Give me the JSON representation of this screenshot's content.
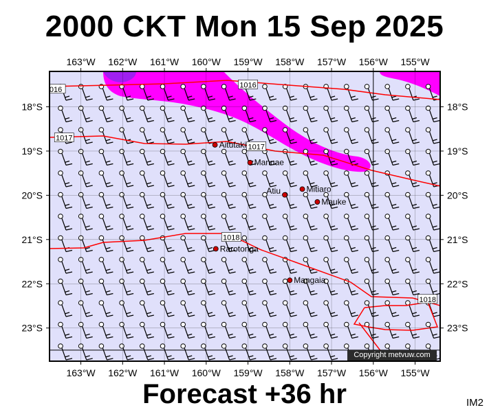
{
  "title": "2000 CKT Mon 15 Sep 2025",
  "subtitle": "Forecast +36 hr",
  "code": "IM2",
  "copyright": "Copyright metvuw.com",
  "map": {
    "lon_min": -163.75,
    "lon_max": -154.4,
    "lat_min": -23.75,
    "lat_max": -17.2,
    "lon_ticks": [
      {
        "value": -163,
        "label": "163°W"
      },
      {
        "value": -162,
        "label": "162°W"
      },
      {
        "value": -161,
        "label": "161°W"
      },
      {
        "value": -160,
        "label": "160°W"
      },
      {
        "value": -159,
        "label": "159°W"
      },
      {
        "value": -158,
        "label": "158°W"
      },
      {
        "value": -157,
        "label": "157°W"
      },
      {
        "value": -156,
        "label": "156°W"
      },
      {
        "value": -155,
        "label": "155°W"
      }
    ],
    "lat_ticks": [
      {
        "value": -18,
        "label": "18°S"
      },
      {
        "value": -19,
        "label": "19°S"
      },
      {
        "value": -20,
        "label": "20°S"
      },
      {
        "value": -21,
        "label": "21°S"
      },
      {
        "value": -22,
        "label": "22°S"
      },
      {
        "value": -23,
        "label": "23°S"
      }
    ],
    "colors": {
      "sea": "#e0e0fb",
      "grid": "#000000",
      "isobar": "#ff0000",
      "rain_light": "#ff00ff",
      "rain_heavy": "#a020f0",
      "place": "#cc0000"
    },
    "isobar_labels": [
      {
        "text": "1016",
        "lon": -159.0,
        "lat": -17.5
      },
      {
        "text": "016",
        "lon": -163.6,
        "lat": -17.6
      },
      {
        "text": "1017",
        "lon": -163.4,
        "lat": -18.7
      },
      {
        "text": "1017",
        "lon": -158.8,
        "lat": -18.9
      },
      {
        "text": "1018",
        "lon": -159.4,
        "lat": -20.95
      },
      {
        "text": "1018",
        "lon": -154.7,
        "lat": -22.35
      }
    ],
    "places": [
      {
        "name": "Aitutaki",
        "lon": -159.79,
        "lat": -18.86
      },
      {
        "name": "Manuae",
        "lon": -158.95,
        "lat": -19.26
      },
      {
        "name": "Mitiaro",
        "lon": -157.7,
        "lat": -19.86
      },
      {
        "name": "Atiu",
        "lon": -158.12,
        "lat": -19.99
      },
      {
        "name": "Mauke",
        "lon": -157.34,
        "lat": -20.15
      },
      {
        "name": "Rarotonga",
        "lon": -159.77,
        "lat": -21.21
      },
      {
        "name": "Mangaia",
        "lon": -158.0,
        "lat": -21.92
      }
    ]
  }
}
